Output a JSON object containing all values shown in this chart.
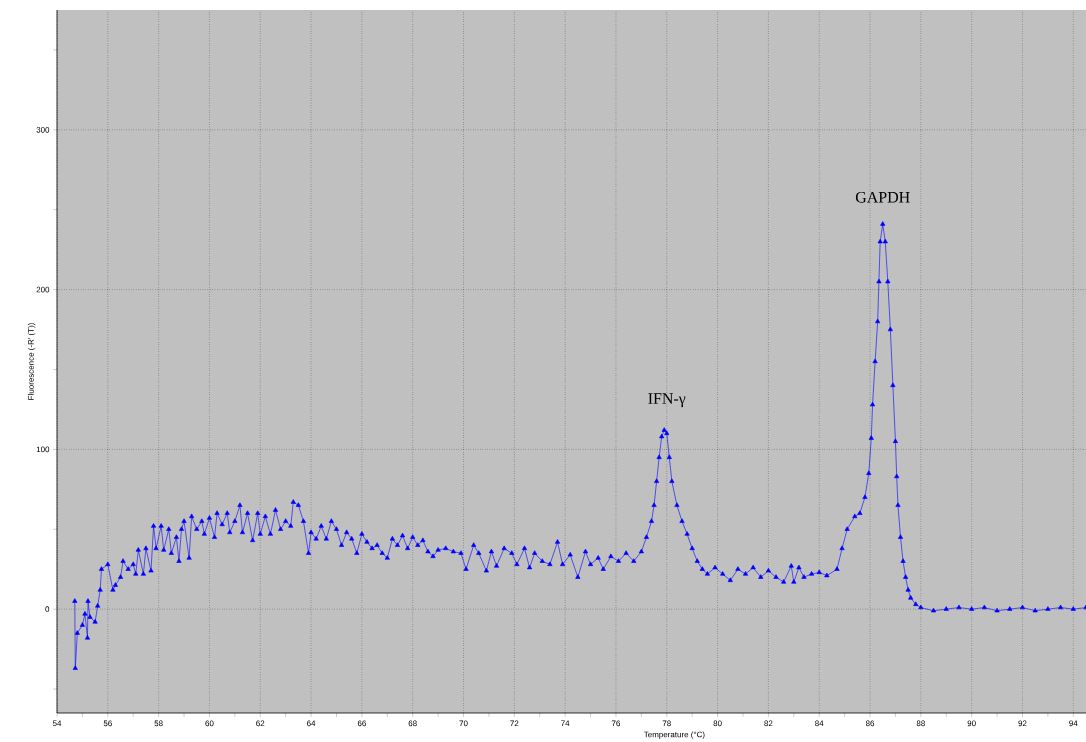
{
  "chart_data": {
    "type": "line",
    "xlabel": "Temperature (°C)",
    "ylabel": "Fluorescence (-R' (T))",
    "annotations": [
      {
        "text": "IFN-γ",
        "x": 78.0,
        "y": 113
      },
      {
        "text": "GAPDH",
        "x": 86.5,
        "y": 241
      }
    ],
    "xlim": [
      54,
      94.5
    ],
    "ylim": [
      -65,
      375
    ],
    "xticks": [
      54,
      {
        "value": 55,
        "label": null
      },
      56,
      {
        "value": 57,
        "label": null
      },
      58,
      {
        "value": 59,
        "label": null
      },
      60,
      {
        "value": 61,
        "label": null
      },
      62,
      {
        "value": 63,
        "label": null
      },
      64,
      {
        "value": 65,
        "label": null
      },
      66,
      {
        "value": 67,
        "label": null
      },
      68,
      {
        "value": 69,
        "label": null
      },
      70,
      {
        "value": 71,
        "label": null
      },
      72,
      {
        "value": 73,
        "label": null
      },
      74,
      {
        "value": 75,
        "label": null
      },
      76,
      {
        "value": 77,
        "label": null
      },
      78,
      {
        "value": 79,
        "label": null
      },
      80,
      {
        "value": 81,
        "label": null
      },
      82,
      {
        "value": 83,
        "label": null
      },
      84,
      {
        "value": 85,
        "label": null
      },
      86,
      {
        "value": 87,
        "label": null
      },
      88,
      {
        "value": 89,
        "label": null
      },
      90,
      {
        "value": 91,
        "label": null
      },
      92,
      {
        "value": 93,
        "label": null
      },
      94
    ],
    "yticks": [
      {
        "value": -50,
        "label": null
      },
      0,
      {
        "value": 50,
        "label": null
      },
      100,
      {
        "value": 150,
        "label": null
      },
      200,
      {
        "value": 250,
        "label": null
      },
      300,
      {
        "value": 350,
        "label": null
      }
    ],
    "grid": true,
    "marker": "triangle",
    "line_style": "solid",
    "x": [
      54.7,
      54.72,
      54.8,
      55.0,
      55.1,
      55.2,
      55.22,
      55.3,
      55.5,
      55.6,
      55.7,
      55.75,
      56.0,
      56.2,
      56.3,
      56.5,
      56.6,
      56.8,
      57.0,
      57.1,
      57.2,
      57.4,
      57.5,
      57.7,
      57.8,
      57.9,
      58.1,
      58.2,
      58.4,
      58.5,
      58.7,
      58.8,
      58.9,
      59.0,
      59.2,
      59.3,
      59.5,
      59.7,
      59.8,
      60.0,
      60.2,
      60.3,
      60.5,
      60.7,
      60.8,
      61.0,
      61.2,
      61.3,
      61.5,
      61.7,
      61.9,
      62.0,
      62.2,
      62.4,
      62.6,
      62.8,
      63.0,
      63.2,
      63.3,
      63.5,
      63.7,
      63.9,
      64.0,
      64.2,
      64.4,
      64.6,
      64.8,
      65.0,
      65.2,
      65.4,
      65.6,
      65.8,
      66.0,
      66.2,
      66.4,
      66.6,
      66.8,
      67.0,
      67.2,
      67.4,
      67.6,
      67.8,
      68.0,
      68.2,
      68.4,
      68.6,
      68.8,
      69.0,
      69.3,
      69.6,
      69.9,
      70.1,
      70.4,
      70.6,
      70.9,
      71.1,
      71.3,
      71.6,
      71.9,
      72.1,
      72.4,
      72.6,
      72.8,
      73.1,
      73.4,
      73.7,
      73.9,
      74.2,
      74.5,
      74.8,
      75.0,
      75.3,
      75.5,
      75.8,
      76.1,
      76.4,
      76.7,
      77.0,
      77.2,
      77.4,
      77.5,
      77.6,
      77.7,
      77.8,
      77.9,
      78.0,
      78.1,
      78.2,
      78.4,
      78.6,
      78.8,
      79.0,
      79.2,
      79.4,
      79.6,
      79.9,
      80.2,
      80.5,
      80.8,
      81.1,
      81.4,
      81.7,
      82.0,
      82.3,
      82.6,
      82.9,
      83.0,
      83.2,
      83.4,
      83.7,
      84.0,
      84.3,
      84.7,
      84.9,
      85.1,
      85.4,
      85.6,
      85.8,
      85.95,
      86.05,
      86.1,
      86.2,
      86.3,
      86.35,
      86.4,
      86.5,
      86.6,
      86.7,
      86.8,
      86.9,
      87.0,
      87.05,
      87.1,
      87.2,
      87.3,
      87.4,
      87.5,
      87.6,
      87.8,
      88.0,
      88.5,
      89.0,
      89.5,
      90.0,
      90.5,
      91.0,
      91.5,
      92.0,
      92.5,
      93.0,
      93.5,
      94.0,
      94.5
    ],
    "series": [
      {
        "color": "#0000ff",
        "values": [
          5,
          -37,
          -15,
          -10,
          -3,
          -18,
          5,
          -5,
          -8,
          2,
          12,
          25,
          28,
          12,
          15,
          20,
          30,
          25,
          28,
          22,
          37,
          22,
          38,
          24,
          52,
          38,
          52,
          37,
          50,
          35,
          45,
          30,
          50,
          55,
          32,
          58,
          50,
          55,
          47,
          57,
          45,
          60,
          53,
          60,
          48,
          55,
          65,
          48,
          60,
          43,
          60,
          47,
          58,
          47,
          62,
          50,
          55,
          52,
          67,
          65,
          55,
          35,
          48,
          44,
          52,
          44,
          55,
          50,
          40,
          48,
          44,
          35,
          47,
          42,
          38,
          40,
          35,
          32,
          44,
          40,
          46,
          38,
          45,
          40,
          43,
          36,
          33,
          37,
          38,
          36,
          35,
          25,
          40,
          35,
          24,
          36,
          27,
          38,
          35,
          28,
          38,
          26,
          35,
          30,
          28,
          42,
          28,
          34,
          20,
          36,
          28,
          32,
          25,
          33,
          30,
          35,
          30,
          36,
          45,
          55,
          65,
          80,
          95,
          108,
          112,
          110,
          95,
          80,
          65,
          55,
          47,
          38,
          30,
          25,
          22,
          26,
          22,
          18,
          25,
          22,
          26,
          20,
          24,
          20,
          17,
          27,
          17,
          26,
          20,
          22,
          23,
          21,
          25,
          38,
          50,
          58,
          60,
          70,
          85,
          107,
          128,
          155,
          180,
          205,
          230,
          241,
          230,
          205,
          175,
          140,
          105,
          83,
          65,
          45,
          30,
          20,
          12,
          7,
          3,
          1,
          -1,
          0,
          1,
          0,
          1,
          -1,
          0,
          1,
          -1,
          0,
          1,
          0,
          1
        ]
      }
    ]
  }
}
